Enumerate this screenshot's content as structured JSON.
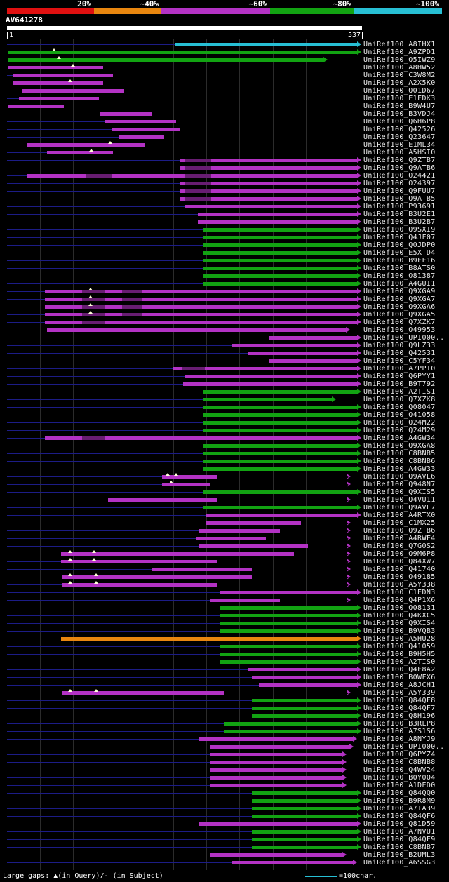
{
  "header": {
    "accession": "AV641278",
    "query_start": "1",
    "query_end": "537"
  },
  "footer": {
    "gaps_legend": "Large gaps: ▲(in Query)/- (in Subject)",
    "scale_unit_label": "=100char."
  },
  "colors": {
    "red": "#e01010",
    "orange": "#e8860f",
    "purple": "#b332c4",
    "green": "#12a312",
    "cyan": "#27bfd4",
    "leader": "#1c1c86",
    "grid": "#2b2b2b",
    "query_bar": "#ffffff",
    "text": "#e8e8e8",
    "gap_marker": "#ffffd8"
  },
  "chart_data": {
    "type": "bar",
    "subtype": "blast-alignment-overview",
    "title": "AV641278",
    "query": {
      "name": "AV641278",
      "start": 1,
      "length": 537
    },
    "xlim": [
      1,
      537
    ],
    "identity_scale": [
      {
        "label": "20%",
        "color": "red",
        "width": 124
      },
      {
        "label": "~40%",
        "color": "orange",
        "width": 96
      },
      {
        "label": "~60%",
        "color": "purple",
        "width": 155
      },
      {
        "label": "~80%",
        "color": "green",
        "width": 120
      },
      {
        "label": "~100%",
        "color": "cyan",
        "width": 125
      }
    ],
    "rows": [
      {
        "label": "UniRef100_A8IHX1",
        "color": "cyan",
        "start": 255,
        "end": 537,
        "arrow": "solid"
      },
      {
        "label": "UniRef100_A9ZPD1",
        "color": "green",
        "start": 2,
        "end": 537,
        "arrow": "solid",
        "gaps": [
          72
        ]
      },
      {
        "label": "UniRef100_Q5IWZ9",
        "color": "green",
        "start": 2,
        "end": 486,
        "arrow": "solid",
        "gaps": [
          80
        ]
      },
      {
        "label": "UniRef100_A8HW52",
        "color": "purple",
        "start": 2,
        "end": 146,
        "gaps": [
          101
        ]
      },
      {
        "label": "UniRef100_C3W8M2",
        "color": "purple",
        "start": 11,
        "end": 161
      },
      {
        "label": "UniRef100_A2X5K0",
        "color": "purple",
        "start": 11,
        "end": 146,
        "gaps": [
          96
        ]
      },
      {
        "label": "UniRef100_Q01D67",
        "color": "purple",
        "start": 24,
        "end": 178
      },
      {
        "label": "UniRef100_E1FDK3",
        "color": "purple",
        "start": 19,
        "end": 140
      },
      {
        "label": "UniRef100_B9W4U7",
        "color": "purple",
        "start": 2,
        "end": 87
      },
      {
        "label": "UniRef100_B3VDJ4",
        "color": "purple",
        "start": 141,
        "end": 221
      },
      {
        "label": "UniRef100_Q6H6P8",
        "color": "purple",
        "start": 149,
        "end": 257
      },
      {
        "label": "UniRef100_Q42526",
        "color": "purple",
        "start": 159,
        "end": 263
      },
      {
        "label": "UniRef100_Q23647",
        "color": "purple",
        "start": 170,
        "end": 239
      },
      {
        "label": "UniRef100_E1ML34",
        "color": "purple",
        "start": 32,
        "end": 210,
        "gaps": [
          157
        ]
      },
      {
        "label": "UniRef100_A5HSI0",
        "color": "purple",
        "start": 62,
        "end": 161,
        "gaps": [
          128
        ]
      },
      {
        "label": "UniRef100_Q9ZTB7",
        "color": "purple",
        "start": 263,
        "end": 537,
        "arrow": "solid",
        "dark": [
          [
            270,
            310
          ]
        ]
      },
      {
        "label": "UniRef100_Q9ATB6",
        "color": "purple",
        "start": 263,
        "end": 537,
        "arrow": "solid",
        "dark": [
          [
            270,
            310
          ]
        ]
      },
      {
        "label": "UniRef100_O24421",
        "color": "purple",
        "start": 32,
        "end": 537,
        "arrow": "solid",
        "dark": [
          [
            120,
            160
          ],
          [
            270,
            310
          ]
        ]
      },
      {
        "label": "UniRef100_O24397",
        "color": "purple",
        "start": 263,
        "end": 537,
        "arrow": "solid",
        "dark": [
          [
            270,
            310
          ]
        ]
      },
      {
        "label": "UniRef100_Q9FUU7",
        "color": "purple",
        "start": 263,
        "end": 537,
        "arrow": "solid",
        "dark": [
          [
            270,
            310
          ]
        ]
      },
      {
        "label": "UniRef100_Q9ATB5",
        "color": "purple",
        "start": 263,
        "end": 537,
        "arrow": "solid",
        "dark": [
          [
            270,
            310
          ]
        ]
      },
      {
        "label": "UniRef100_P93691",
        "color": "purple",
        "start": 269,
        "end": 537,
        "arrow": "solid"
      },
      {
        "label": "UniRef100_B3U2E1",
        "color": "purple",
        "start": 290,
        "end": 537,
        "arrow": "solid"
      },
      {
        "label": "UniRef100_B3U2B7",
        "color": "purple",
        "start": 290,
        "end": 537,
        "arrow": "solid"
      },
      {
        "label": "UniRef100_Q9SXI9",
        "color": "green",
        "start": 297,
        "end": 537,
        "arrow": "solid"
      },
      {
        "label": "UniRef100_Q4JF07",
        "color": "green",
        "start": 297,
        "end": 537,
        "arrow": "solid"
      },
      {
        "label": "UniRef100_Q0JDP0",
        "color": "green",
        "start": 297,
        "end": 537,
        "arrow": "solid"
      },
      {
        "label": "UniRef100_E5XTD4",
        "color": "green",
        "start": 297,
        "end": 537,
        "arrow": "solid"
      },
      {
        "label": "UniRef100_B9FF16",
        "color": "green",
        "start": 297,
        "end": 537,
        "arrow": "solid"
      },
      {
        "label": "UniRef100_B8ATS0",
        "color": "green",
        "start": 297,
        "end": 537,
        "arrow": "solid"
      },
      {
        "label": "UniRef100_O81387",
        "color": "green",
        "start": 297,
        "end": 537,
        "arrow": "solid"
      },
      {
        "label": "UniRef100_A4GUI1",
        "color": "green",
        "start": 297,
        "end": 537,
        "arrow": "solid"
      },
      {
        "label": "UniRef100_Q9XGA9",
        "color": "purple",
        "start": 58,
        "end": 537,
        "arrow": "solid",
        "gaps": [
          127
        ],
        "dark": [
          [
            115,
            150
          ],
          [
            175,
            205
          ]
        ]
      },
      {
        "label": "UniRef100_Q9XGA7",
        "color": "purple",
        "start": 58,
        "end": 537,
        "arrow": "solid",
        "gaps": [
          127
        ],
        "dark": [
          [
            115,
            150
          ],
          [
            175,
            205
          ]
        ]
      },
      {
        "label": "UniRef100_Q9XGA6",
        "color": "purple",
        "start": 58,
        "end": 537,
        "arrow": "solid",
        "gaps": [
          127
        ],
        "dark": [
          [
            115,
            150
          ],
          [
            175,
            205
          ]
        ]
      },
      {
        "label": "UniRef100_Q9XGA5",
        "color": "purple",
        "start": 58,
        "end": 537,
        "arrow": "solid",
        "gaps": [
          127
        ],
        "dark": [
          [
            115,
            150
          ],
          [
            175,
            205
          ]
        ]
      },
      {
        "label": "UniRef100_Q7XZK7",
        "color": "purple",
        "start": 58,
        "end": 537,
        "arrow": "solid",
        "dark": [
          [
            115,
            150
          ]
        ]
      },
      {
        "label": "UniRef100_O49953",
        "color": "purple",
        "start": 62,
        "end": 520,
        "arrow": "solid"
      },
      {
        "label": "UniRef100_UPI000..",
        "color": "purple",
        "start": 398,
        "end": 537,
        "arrow": "solid"
      },
      {
        "label": "UniRef100_Q9LZ33",
        "color": "purple",
        "start": 342,
        "end": 537,
        "arrow": "solid"
      },
      {
        "label": "UniRef100_Q42531",
        "color": "purple",
        "start": 366,
        "end": 537,
        "arrow": "solid"
      },
      {
        "label": "UniRef100_C5YF34",
        "color": "purple",
        "start": 398,
        "end": 537,
        "arrow": "solid"
      },
      {
        "label": "UniRef100_A7PPI0",
        "color": "purple",
        "start": 253,
        "end": 537,
        "arrow": "solid",
        "dark": [
          [
            265,
            300
          ]
        ]
      },
      {
        "label": "UniRef100_Q6PYY1",
        "color": "purple",
        "start": 271,
        "end": 537,
        "arrow": "solid"
      },
      {
        "label": "UniRef100_B9T792",
        "color": "purple",
        "start": 267,
        "end": 537,
        "arrow": "solid"
      },
      {
        "label": "UniRef100_A2TIS1",
        "color": "green",
        "start": 297,
        "end": 537,
        "arrow": "solid"
      },
      {
        "label": "UniRef100_Q7XZK8",
        "color": "green",
        "start": 297,
        "end": 499,
        "arrow": "solid"
      },
      {
        "label": "UniRef100_Q08047",
        "color": "green",
        "start": 297,
        "end": 537,
        "arrow": "solid"
      },
      {
        "label": "UniRef100_Q41058",
        "color": "green",
        "start": 297,
        "end": 537,
        "arrow": "solid"
      },
      {
        "label": "UniRef100_Q24M22",
        "color": "green",
        "start": 297,
        "end": 537,
        "arrow": "solid"
      },
      {
        "label": "UniRef100_Q24M29",
        "color": "green",
        "start": 297,
        "end": 537,
        "arrow": "solid"
      },
      {
        "label": "UniRef100_A4GW34",
        "color": "purple",
        "start": 58,
        "end": 537,
        "arrow": "solid",
        "dark": [
          [
            115,
            150
          ]
        ]
      },
      {
        "label": "UniRef100_Q9XGA8",
        "color": "green",
        "start": 297,
        "end": 537,
        "arrow": "solid"
      },
      {
        "label": "UniRef100_C8BNB5",
        "color": "green",
        "start": 297,
        "end": 537,
        "arrow": "solid"
      },
      {
        "label": "UniRef100_C8BNB6",
        "color": "green",
        "start": 297,
        "end": 537,
        "arrow": "solid"
      },
      {
        "label": "UniRef100_A4GW33",
        "color": "green",
        "start": 297,
        "end": 537,
        "arrow": "solid"
      },
      {
        "label": "UniRef100_Q9AVL6",
        "color": "purple",
        "start": 236,
        "end": 318,
        "gaps": [
          244,
          257
        ],
        "open_arrow": 515
      },
      {
        "label": "UniRef100_Q948N7",
        "color": "purple",
        "start": 236,
        "end": 308,
        "gaps": [
          249
        ],
        "open_arrow": 515
      },
      {
        "label": "UniRef100_Q9XIS5",
        "color": "green",
        "start": 297,
        "end": 537,
        "arrow": "solid"
      },
      {
        "label": "UniRef100_Q4VU11",
        "color": "purple",
        "start": 154,
        "end": 318,
        "open_arrow": 515
      },
      {
        "label": "UniRef100_Q9AVL7",
        "color": "green",
        "start": 297,
        "end": 537,
        "arrow": "solid"
      },
      {
        "label": "UniRef100_A4RTX0",
        "color": "purple",
        "start": 302,
        "end": 537,
        "arrow": "solid"
      },
      {
        "label": "UniRef100_C1MX25",
        "color": "purple",
        "start": 302,
        "end": 446,
        "open_arrow": 515
      },
      {
        "label": "UniRef100_Q9ZTB6",
        "color": "purple",
        "start": 292,
        "end": 414,
        "open_arrow": 515
      },
      {
        "label": "UniRef100_A4RWF4",
        "color": "purple",
        "start": 287,
        "end": 393,
        "open_arrow": 515
      },
      {
        "label": "UniRef100_Q7G0S2",
        "color": "purple",
        "start": 292,
        "end": 456,
        "open_arrow": 515
      },
      {
        "label": "UniRef100_Q9M6P8",
        "color": "purple",
        "start": 83,
        "end": 435,
        "gaps": [
          96,
          133
        ],
        "open_arrow": 515
      },
      {
        "label": "UniRef100_Q84XW7",
        "color": "purple",
        "start": 83,
        "end": 318,
        "gaps": [
          96,
          133
        ],
        "open_arrow": 515
      },
      {
        "label": "UniRef100_Q41740",
        "color": "purple",
        "start": 221,
        "end": 371,
        "open_arrow": 515
      },
      {
        "label": "UniRef100_O49185",
        "color": "purple",
        "start": 85,
        "end": 371,
        "gaps": [
          96,
          136
        ],
        "open_arrow": 515
      },
      {
        "label": "UniRef100_A5Y338",
        "color": "purple",
        "start": 85,
        "end": 318,
        "gaps": [
          96,
          136
        ],
        "open_arrow": 515
      },
      {
        "label": "UniRef100_C1EDN3",
        "color": "purple",
        "start": 324,
        "end": 537,
        "arrow": "solid"
      },
      {
        "label": "UniRef100_Q4P1X6",
        "color": "purple",
        "start": 308,
        "end": 414,
        "open_arrow": 515
      },
      {
        "label": "UniRef100_Q08131",
        "color": "green",
        "start": 324,
        "end": 537,
        "arrow": "solid"
      },
      {
        "label": "UniRef100_Q4KXC5",
        "color": "green",
        "start": 324,
        "end": 537,
        "arrow": "solid"
      },
      {
        "label": "UniRef100_Q9XIS4",
        "color": "green",
        "start": 324,
        "end": 537,
        "arrow": "solid"
      },
      {
        "label": "UniRef100_B9VQB3",
        "color": "green",
        "start": 324,
        "end": 537,
        "arrow": "solid"
      },
      {
        "label": "UniRef100_A5HU28",
        "color": "orange",
        "start": 83,
        "end": 537,
        "arrow": "solid"
      },
      {
        "label": "UniRef100_Q41059",
        "color": "green",
        "start": 324,
        "end": 537,
        "arrow": "solid"
      },
      {
        "label": "UniRef100_B9H5H5",
        "color": "green",
        "start": 324,
        "end": 537,
        "arrow": "solid"
      },
      {
        "label": "UniRef100_A2TIS0",
        "color": "green",
        "start": 324,
        "end": 537,
        "arrow": "solid"
      },
      {
        "label": "UniRef100_Q4F8A2",
        "color": "purple",
        "start": 366,
        "end": 537,
        "arrow": "solid"
      },
      {
        "label": "UniRef100_B0WFX6",
        "color": "purple",
        "start": 371,
        "end": 537,
        "arrow": "solid"
      },
      {
        "label": "UniRef100_A8JCH1",
        "color": "purple",
        "start": 382,
        "end": 537,
        "arrow": "solid"
      },
      {
        "label": "UniRef100_A5Y339",
        "color": "purple",
        "start": 85,
        "end": 329,
        "gaps": [
          96,
          136
        ],
        "open_arrow": 515
      },
      {
        "label": "UniRef100_Q84QF8",
        "color": "green",
        "start": 371,
        "end": 537,
        "arrow": "solid"
      },
      {
        "label": "UniRef100_Q84QF7",
        "color": "green",
        "start": 371,
        "end": 537,
        "arrow": "solid"
      },
      {
        "label": "UniRef100_Q8H196",
        "color": "green",
        "start": 371,
        "end": 537,
        "arrow": "solid"
      },
      {
        "label": "UniRef100_B3RLP8",
        "color": "green",
        "start": 329,
        "end": 537,
        "arrow": "solid"
      },
      {
        "label": "UniRef100_A7S1S6",
        "color": "green",
        "start": 329,
        "end": 537,
        "arrow": "solid"
      },
      {
        "label": "UniRef100_A8NYJ9",
        "color": "purple",
        "start": 292,
        "end": 531,
        "arrow": "solid"
      },
      {
        "label": "UniRef100_UPI000..",
        "color": "purple",
        "start": 308,
        "end": 525,
        "arrow": "solid"
      },
      {
        "label": "UniRef100_Q6PYZ4",
        "color": "purple",
        "start": 308,
        "end": 515,
        "arrow": "solid"
      },
      {
        "label": "UniRef100_C8BNB8",
        "color": "purple",
        "start": 308,
        "end": 515,
        "arrow": "solid"
      },
      {
        "label": "UniRef100_Q4WV24",
        "color": "purple",
        "start": 308,
        "end": 515,
        "arrow": "solid"
      },
      {
        "label": "UniRef100_B0Y0Q4",
        "color": "purple",
        "start": 308,
        "end": 515,
        "arrow": "solid"
      },
      {
        "label": "UniRef100_A1DED0",
        "color": "purple",
        "start": 308,
        "end": 515,
        "arrow": "solid"
      },
      {
        "label": "UniRef100_Q84QQ0",
        "color": "green",
        "start": 371,
        "end": 537,
        "arrow": "solid"
      },
      {
        "label": "UniRef100_B9R8M9",
        "color": "green",
        "start": 371,
        "end": 537,
        "arrow": "solid"
      },
      {
        "label": "UniRef100_A7TA39",
        "color": "green",
        "start": 371,
        "end": 537,
        "arrow": "solid"
      },
      {
        "label": "UniRef100_Q84QF6",
        "color": "green",
        "start": 371,
        "end": 537,
        "arrow": "solid"
      },
      {
        "label": "UniRef100_Q81D59",
        "color": "purple",
        "start": 292,
        "end": 537,
        "arrow": "solid"
      },
      {
        "label": "UniRef100_A7NVU1",
        "color": "green",
        "start": 371,
        "end": 537,
        "arrow": "solid"
      },
      {
        "label": "UniRef100_Q84QF9",
        "color": "green",
        "start": 371,
        "end": 537,
        "arrow": "solid"
      },
      {
        "label": "UniRef100_C8BNB7",
        "color": "green",
        "start": 371,
        "end": 537,
        "arrow": "solid"
      },
      {
        "label": "UniRef100_B2UML3",
        "color": "purple",
        "start": 308,
        "end": 515,
        "arrow": "solid"
      },
      {
        "label": "UniRef100_A6SSG3",
        "color": "purple",
        "start": 342,
        "end": 531,
        "arrow": "solid"
      }
    ]
  }
}
